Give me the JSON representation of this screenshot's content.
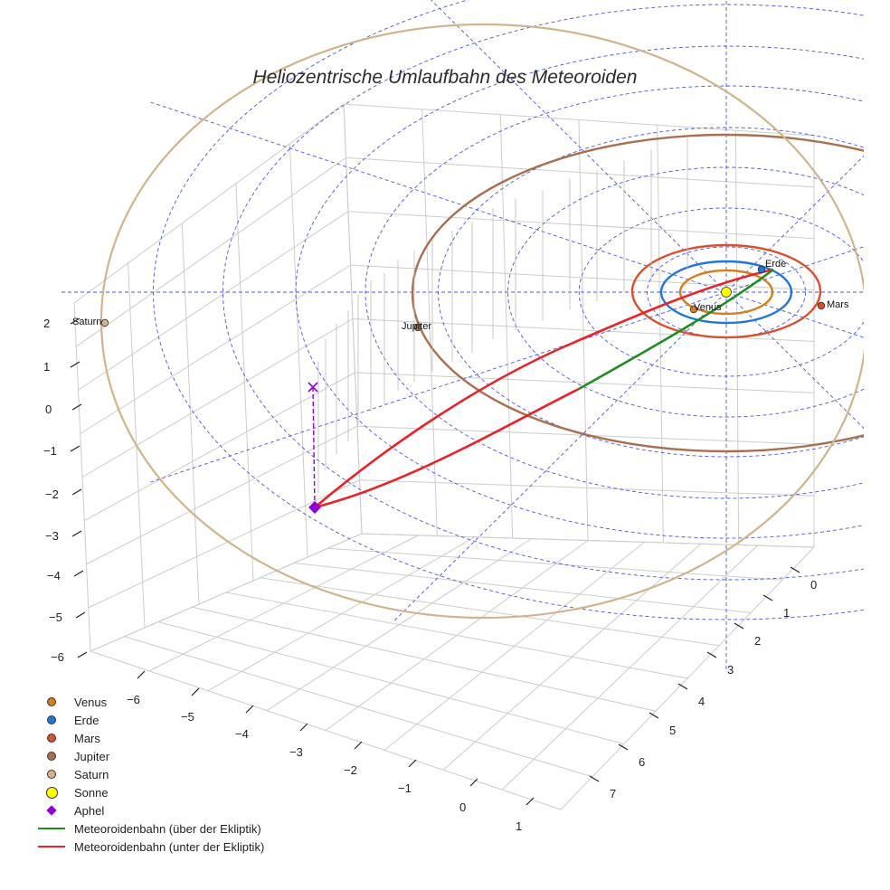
{
  "chart_data": {
    "type": "3d-orbit",
    "title": "Heliozentrische Umlaufbahn des Meteoroiden",
    "axes": {
      "x": {
        "ticks": [
          "−6",
          "−5",
          "−4",
          "−3",
          "−2",
          "−1",
          "0",
          "1"
        ]
      },
      "y": {
        "ticks": [
          "0",
          "1",
          "2",
          "3",
          "4",
          "5",
          "6",
          "7"
        ]
      },
      "z": {
        "ticks": [
          "2",
          "1",
          "0",
          "−1",
          "−2",
          "−3",
          "−4",
          "−5",
          "−6"
        ]
      }
    },
    "planets": [
      {
        "name": "Venus",
        "label": "Venus",
        "color": "#d2801f"
      },
      {
        "name": "Erde",
        "label": "Erde",
        "color": "#1f77d4"
      },
      {
        "name": "Mars",
        "label": "Mars",
        "color": "#d95030"
      },
      {
        "name": "Jupiter",
        "label": "Jupiter",
        "color": "#a8704f"
      },
      {
        "name": "Saturn",
        "label": "Saturn",
        "color": "#d2b48c"
      }
    ],
    "legend": [
      {
        "label": "Venus",
        "symbol": "dot",
        "color": "#d2801f"
      },
      {
        "label": "Erde",
        "symbol": "dot",
        "color": "#1f77d4"
      },
      {
        "label": "Mars",
        "symbol": "dot",
        "color": "#d95030"
      },
      {
        "label": "Jupiter",
        "symbol": "dot",
        "color": "#a8704f"
      },
      {
        "label": "Saturn",
        "symbol": "dot",
        "color": "#d2b48c"
      },
      {
        "label": "Sonne",
        "symbol": "dot-big",
        "color": "#ffff00"
      },
      {
        "label": "Aphel",
        "symbol": "diamond",
        "color": "#9400d3"
      },
      {
        "label": "Meteoroidenbahn (über der Ekliptik)",
        "symbol": "line",
        "color": "#228b22"
      },
      {
        "label": "Meteoroidenbahn (unter der Ekliptik)",
        "symbol": "line",
        "color": "#e8232a"
      }
    ],
    "colors": {
      "above": "#228b22",
      "below": "#e8232a",
      "aphel": "#9400d3",
      "sun": "#ffff00",
      "ecliptic_grid": "#4a55e0"
    }
  }
}
